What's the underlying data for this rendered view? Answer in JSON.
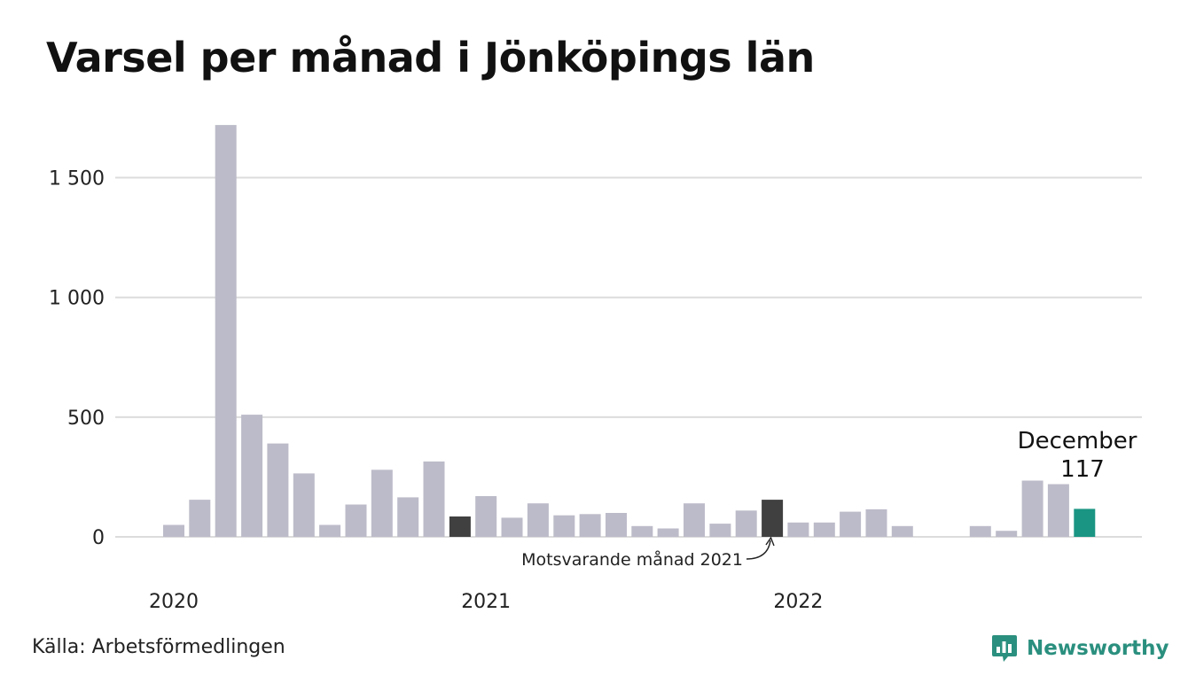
{
  "title": "Varsel per månad i Jönköpings län",
  "source": "Källa: Arbetsförmedlingen",
  "brand": "Newsworthy",
  "colors": {
    "bar_default": "#bcbbc9",
    "bar_comparison": "#404040",
    "bar_current": "#1a9583",
    "grid": "#dcdcdc",
    "brand": "#2a8f7e"
  },
  "icons": {
    "brand": "newsworthy-logo-icon"
  },
  "chart_data": {
    "type": "bar",
    "title": "Varsel per månad i Jönköpings län",
    "xlabel": "",
    "ylabel": "",
    "ylim": [
      0,
      1800
    ],
    "yticks": [
      0,
      500,
      1000,
      1500
    ],
    "ytick_labels": [
      "0",
      "500",
      "1 000",
      "1 500"
    ],
    "grid": true,
    "x_year_labels": [
      {
        "label": "2020",
        "index": 0
      },
      {
        "label": "2021",
        "index": 12
      },
      {
        "label": "2022",
        "index": 24
      }
    ],
    "categories": [
      "2020-01",
      "2020-02",
      "2020-03",
      "2020-04",
      "2020-05",
      "2020-06",
      "2020-07",
      "2020-08",
      "2020-09",
      "2020-10",
      "2020-11",
      "2020-12",
      "2021-01",
      "2021-02",
      "2021-03",
      "2021-04",
      "2021-05",
      "2021-06",
      "2021-07",
      "2021-08",
      "2021-09",
      "2021-10",
      "2021-11",
      "2021-12",
      "2022-01",
      "2022-02",
      "2022-03",
      "2022-04",
      "2022-05",
      "2022-06",
      "2022-07",
      "2022-08",
      "2022-09",
      "2022-10",
      "2022-11",
      "2022-12"
    ],
    "values": [
      50,
      155,
      1720,
      510,
      390,
      265,
      50,
      135,
      280,
      165,
      315,
      85,
      170,
      80,
      140,
      90,
      95,
      100,
      45,
      35,
      140,
      55,
      110,
      155,
      60,
      60,
      105,
      115,
      45,
      null,
      null,
      45,
      25,
      235,
      220,
      117
    ],
    "highlights": {
      "comparison_indices": [
        11,
        23
      ],
      "current_index": 35
    },
    "annotations": {
      "comparison_label": "Motsvarande månad 2021",
      "current_month": "December",
      "current_value": "117"
    }
  }
}
